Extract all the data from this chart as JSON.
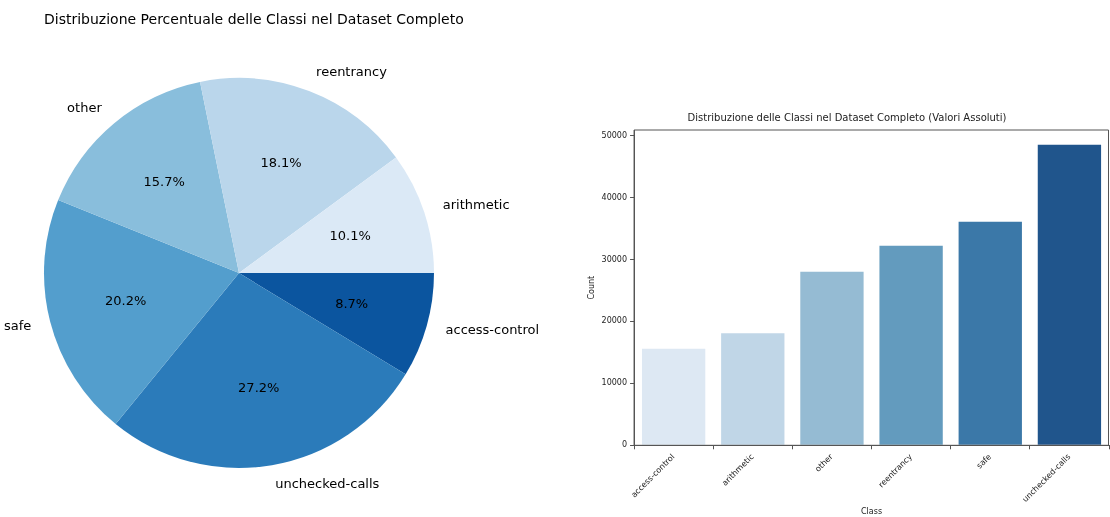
{
  "chart_data": [
    {
      "type": "pie",
      "title": "Distribuzione Percentuale delle Classi nel Dataset Completo",
      "categories": [
        "access-control",
        "unchecked-calls",
        "safe",
        "other",
        "reentrancy",
        "arithmetic"
      ],
      "values": [
        8.7,
        27.2,
        20.2,
        15.7,
        18.1,
        10.1
      ],
      "value_labels": [
        "8.7%",
        "27.2%",
        "20.2%",
        "15.7%",
        "18.1%",
        "10.1%"
      ],
      "colors": [
        "#0b559f",
        "#2b7bba",
        "#539ecd",
        "#89bedc",
        "#bad6eb",
        "#dbe9f6"
      ],
      "legend": false
    },
    {
      "type": "bar",
      "title": "Distribuzione delle Classi nel Dataset Completo (Valori Assoluti)",
      "xlabel": "Class",
      "ylabel": "Count",
      "categories": [
        "access-control",
        "arithmetic",
        "other",
        "reentrancy",
        "safe",
        "unchecked-calls"
      ],
      "values": [
        15600,
        18100,
        28000,
        32200,
        36100,
        48500
      ],
      "colors": [
        "#dde8f3",
        "#c0d6e7",
        "#95bbd3",
        "#639bbe",
        "#3b78a8",
        "#20558c"
      ],
      "ylim": [
        0,
        50900
      ],
      "yticks": [
        0,
        10000,
        20000,
        30000,
        40000,
        50000
      ],
      "grid": false,
      "legend": false
    }
  ]
}
